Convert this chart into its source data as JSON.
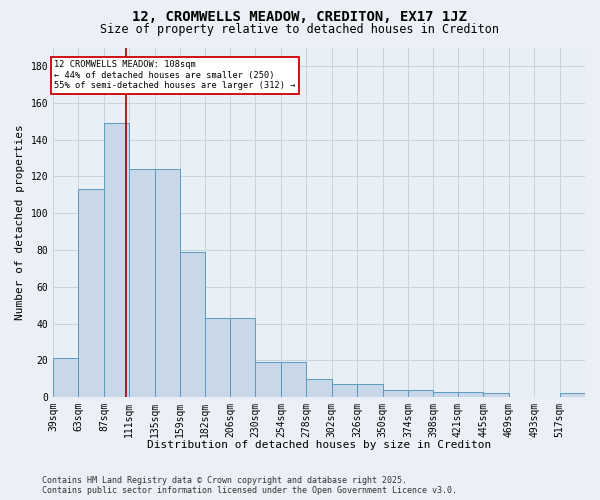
{
  "title": "12, CROMWELLS MEADOW, CREDITON, EX17 1JZ",
  "subtitle": "Size of property relative to detached houses in Crediton",
  "xlabel": "Distribution of detached houses by size in Crediton",
  "ylabel": "Number of detached properties",
  "footer_line1": "Contains HM Land Registry data © Crown copyright and database right 2025.",
  "footer_line2": "Contains public sector information licensed under the Open Government Licence v3.0.",
  "bin_labels": [
    "39sqm",
    "63sqm",
    "87sqm",
    "111sqm",
    "135sqm",
    "159sqm",
    "182sqm",
    "206sqm",
    "230sqm",
    "254sqm",
    "278sqm",
    "302sqm",
    "326sqm",
    "350sqm",
    "374sqm",
    "398sqm",
    "421sqm",
    "445sqm",
    "469sqm",
    "493sqm",
    "517sqm"
  ],
  "bar_heights": [
    21,
    113,
    149,
    124,
    124,
    79,
    43,
    43,
    19,
    19,
    10,
    7,
    7,
    4,
    4,
    3,
    3,
    2,
    0,
    0,
    2
  ],
  "bar_color": "#c8d8e8",
  "bar_edge_color": "#5a9abf",
  "vline_x_bin": 2.82,
  "annotation_text": "12 CROMWELLS MEADOW: 108sqm\n← 44% of detached houses are smaller (250)\n55% of semi-detached houses are larger (312) →",
  "ylim": [
    0,
    190
  ],
  "yticks": [
    0,
    20,
    40,
    60,
    80,
    100,
    120,
    140,
    160,
    180
  ],
  "grid_color": "#c8d4dc",
  "background_color": "#e8eff5",
  "fig_background_color": "#eaf0f5",
  "title_fontsize": 10,
  "subtitle_fontsize": 8.5,
  "axis_label_fontsize": 8,
  "tick_fontsize": 7,
  "footer_fontsize": 6
}
